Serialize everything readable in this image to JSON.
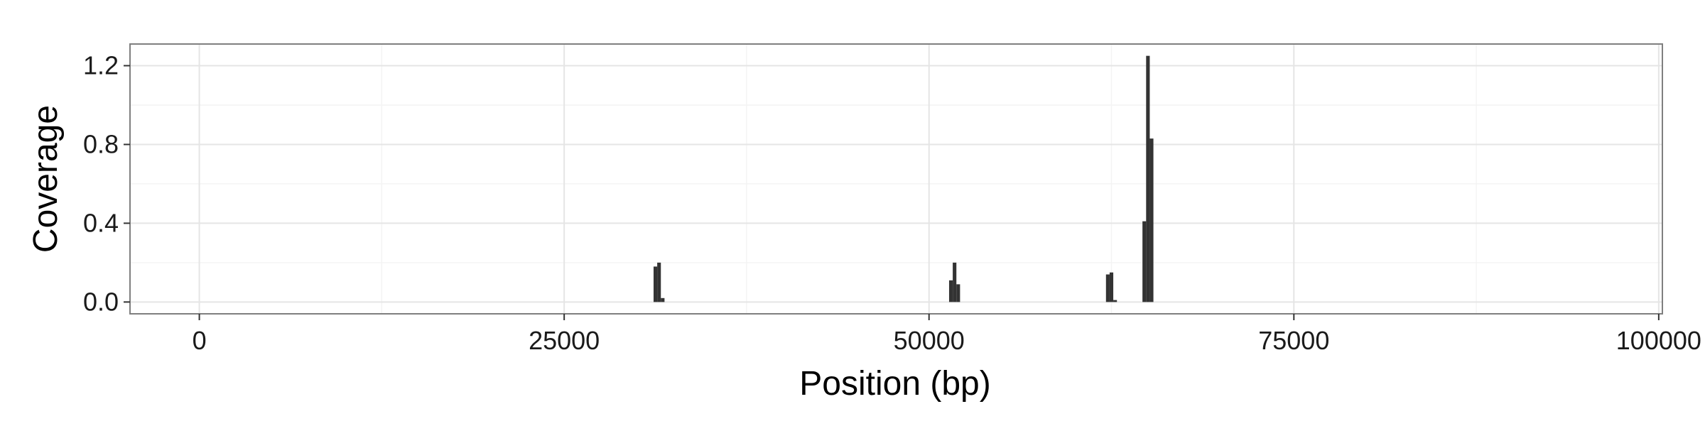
{
  "chart_data": {
    "type": "bar",
    "title": "",
    "xlabel": "Position (bp)",
    "ylabel": "Coverage",
    "xlim": [
      -4750,
      100250
    ],
    "ylim": [
      -0.06,
      1.31
    ],
    "x_ticks": [
      0,
      25000,
      50000,
      75000,
      100000
    ],
    "x_tick_labels": [
      "0",
      "25000",
      "50000",
      "75000",
      "100000"
    ],
    "y_ticks": [
      0.0,
      0.4,
      0.8,
      1.2
    ],
    "y_tick_labels": [
      "0.0",
      "0.4",
      "0.8",
      "1.2"
    ],
    "grid": true,
    "legend": "none",
    "bar_width": 250,
    "series": [
      {
        "color": "#333333",
        "x": [
          31250,
          31500,
          31750,
          51500,
          51750,
          52000,
          62250,
          62500,
          62750,
          64750,
          65000,
          65250
        ],
        "values": [
          0.18,
          0.2,
          0.02,
          0.11,
          0.2,
          0.09,
          0.14,
          0.15,
          0.01,
          0.41,
          1.25,
          0.83
        ]
      }
    ],
    "colors": {
      "panel_border": "#7f7f7f",
      "grid_major": "#e5e5e5",
      "grid_minor": "#f4f4f4",
      "bar": "#333333",
      "text": "#1a1a1a"
    }
  }
}
